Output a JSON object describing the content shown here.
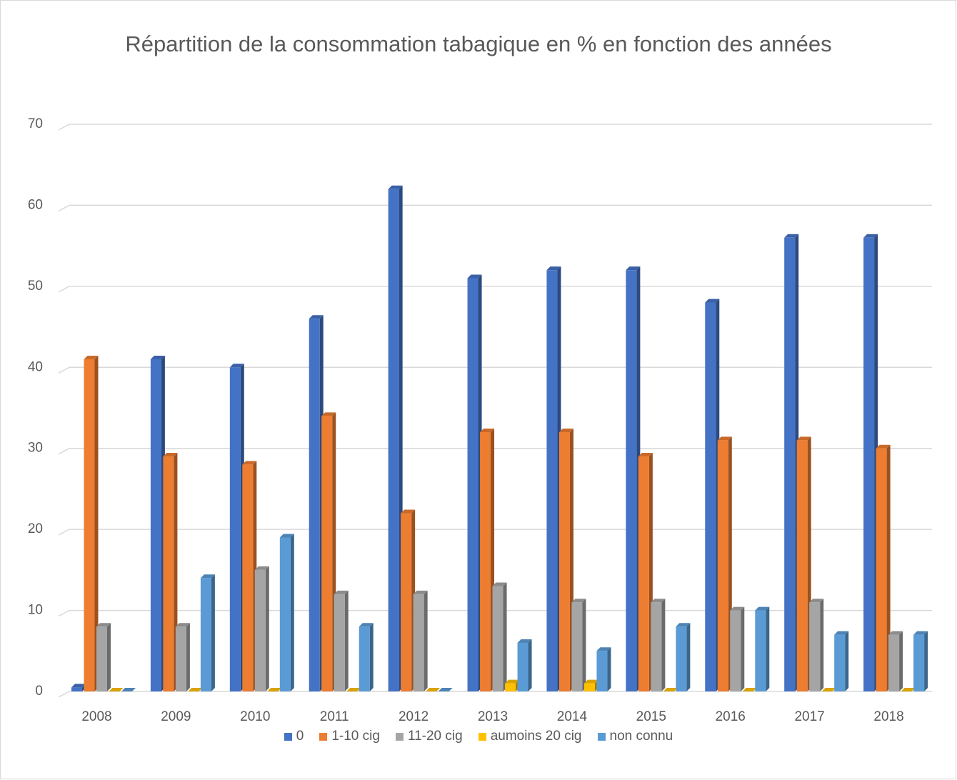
{
  "chart_data": {
    "type": "bar3d",
    "title": "Répartition de la consommation tabagique en % en fonction des années",
    "categories": [
      "2008",
      "2009",
      "2010",
      "2011",
      "2012",
      "2013",
      "2014",
      "2015",
      "2016",
      "2017",
      "2018"
    ],
    "series": [
      {
        "name": "0",
        "color": "#4472c4",
        "values": [
          0.5,
          41,
          40,
          46,
          62,
          51,
          52,
          52,
          48,
          56,
          56
        ]
      },
      {
        "name": "1-10 cig",
        "color": "#ed7d31",
        "values": [
          41,
          29,
          28,
          34,
          22,
          32,
          32,
          29,
          31,
          31,
          30
        ]
      },
      {
        "name": "11-20 cig",
        "color": "#a5a5a5",
        "values": [
          8,
          8,
          15,
          12,
          12,
          13,
          11,
          11,
          10,
          11,
          7
        ]
      },
      {
        "name": "aumoins 20 cig",
        "color": "#ffc000",
        "values": [
          0,
          0,
          0,
          0,
          0,
          1,
          1,
          0,
          0,
          0,
          0
        ]
      },
      {
        "name": "non connu",
        "color": "#5b9bd5",
        "values": [
          0,
          14,
          19,
          8,
          0,
          6,
          5,
          8,
          10,
          7,
          7
        ]
      }
    ],
    "ylim": [
      0,
      70
    ],
    "yticks": [
      0,
      10,
      20,
      30,
      40,
      50,
      60,
      70
    ],
    "grid": true,
    "legend": "bottom"
  }
}
